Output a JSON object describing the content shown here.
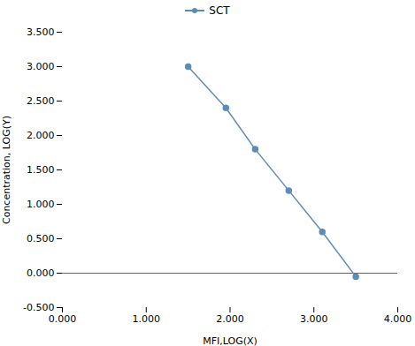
{
  "chart_data": {
    "type": "line",
    "x": [
      1.5,
      1.95,
      2.3,
      2.7,
      3.1,
      3.5
    ],
    "series": [
      {
        "name": "SCT",
        "color": "#5b8db8",
        "marker": "o",
        "values": [
          3.0,
          2.4,
          1.8,
          1.2,
          0.6,
          -0.05
        ]
      }
    ],
    "xlabel": "MFI,LOG(X)",
    "ylabel": "Concentration, LOG(Y)",
    "xlim": [
      0,
      4
    ],
    "ylim": [
      -0.5,
      3.5
    ],
    "xticks": [
      {
        "value": 0,
        "label": "0.000"
      },
      {
        "value": 1,
        "label": "1.000"
      },
      {
        "value": 2,
        "label": "2.000"
      },
      {
        "value": 3,
        "label": "3.000"
      },
      {
        "value": 4,
        "label": "4.000"
      }
    ],
    "yticks": [
      {
        "value": -0.5,
        "label": "-0.500"
      },
      {
        "value": 0,
        "label": "0.000"
      },
      {
        "value": 0.5,
        "label": "0.500"
      },
      {
        "value": 1,
        "label": "1.000"
      },
      {
        "value": 1.5,
        "label": "1.500"
      },
      {
        "value": 2,
        "label": "2.000"
      },
      {
        "value": 2.5,
        "label": "2.500"
      },
      {
        "value": 3,
        "label": "3.000"
      },
      {
        "value": 3.5,
        "label": "3.500"
      }
    ],
    "legend": "top",
    "grid": false
  }
}
